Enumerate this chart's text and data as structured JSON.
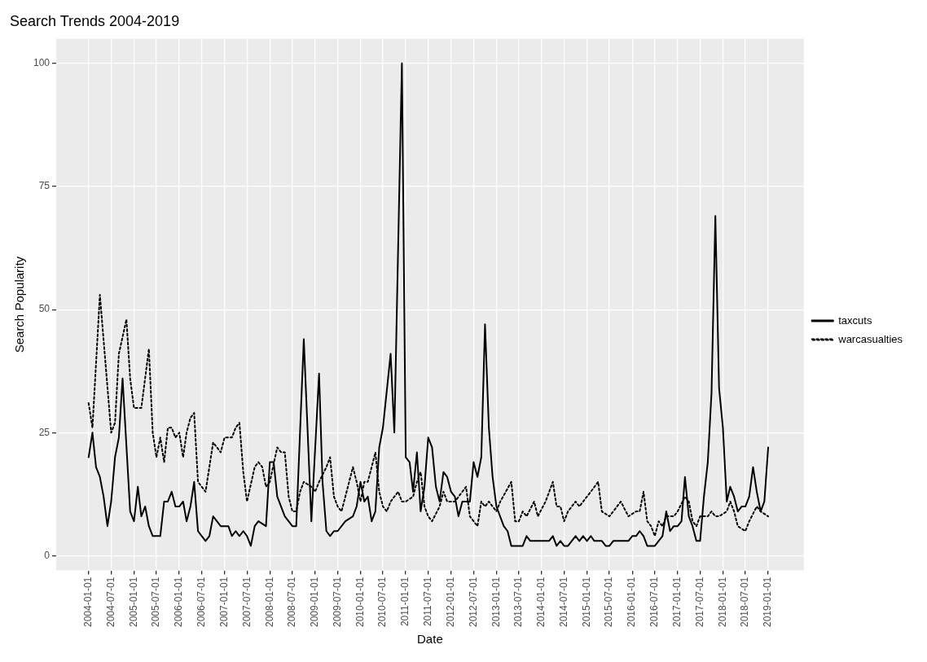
{
  "chart_data": {
    "type": "line",
    "title": "Search Trends 2004-2019",
    "xlabel": "Date",
    "ylabel": "Search Popularity",
    "xlim": [
      "2003-04-15",
      "2019-10-15"
    ],
    "ylim": [
      -3,
      105
    ],
    "yticks": [
      0,
      25,
      50,
      75,
      100
    ],
    "xticks": [
      "2004-01-01",
      "2004-07-01",
      "2005-01-01",
      "2005-07-01",
      "2006-01-01",
      "2006-07-01",
      "2007-01-01",
      "2007-07-01",
      "2008-01-01",
      "2008-07-01",
      "2009-01-01",
      "2009-07-01",
      "2010-01-01",
      "2010-07-01",
      "2011-01-01",
      "2011-07-01",
      "2012-01-01",
      "2012-07-01",
      "2013-01-01",
      "2013-07-01",
      "2014-01-01",
      "2014-07-01",
      "2015-01-01",
      "2015-07-01",
      "2016-01-01",
      "2016-07-01",
      "2017-01-01",
      "2017-07-01",
      "2018-01-01",
      "2018-07-01",
      "2019-01-01"
    ],
    "grid": true,
    "legend": "right",
    "series": [
      {
        "name": "taxcuts",
        "color": "#000000",
        "line_style": "solid",
        "x": [
          "2004-01",
          "2004-02",
          "2004-03",
          "2004-04",
          "2004-05",
          "2004-06",
          "2004-07",
          "2004-08",
          "2004-09",
          "2004-10",
          "2004-12",
          "2005-01",
          "2005-02",
          "2005-03",
          "2005-04",
          "2005-05",
          "2005-06",
          "2005-08",
          "2005-09",
          "2005-10",
          "2005-11",
          "2005-12",
          "2006-01",
          "2006-02",
          "2006-03",
          "2006-04",
          "2006-05",
          "2006-06",
          "2006-07",
          "2006-08",
          "2006-09",
          "2006-10",
          "2006-12",
          "2007-02",
          "2007-03",
          "2007-04",
          "2007-05",
          "2007-06",
          "2007-07",
          "2007-08",
          "2007-09",
          "2007-10",
          "2007-12",
          "2008-01",
          "2008-02",
          "2008-03",
          "2008-05",
          "2008-07",
          "2008-08",
          "2008-10",
          "2008-12",
          "2009-02",
          "2009-03",
          "2009-04",
          "2009-05",
          "2009-06",
          "2009-07",
          "2009-09",
          "2009-11",
          "2009-12",
          "2010-01",
          "2010-02",
          "2010-03",
          "2010-04",
          "2010-05",
          "2010-06",
          "2010-07",
          "2010-09",
          "2010-10",
          "2010-12",
          "2011-01",
          "2011-02",
          "2011-03",
          "2011-04",
          "2011-05",
          "2011-06",
          "2011-07",
          "2011-08",
          "2011-09",
          "2011-10",
          "2011-11",
          "2011-12",
          "2012-01",
          "2012-02",
          "2012-03",
          "2012-04",
          "2012-06",
          "2012-07",
          "2012-08",
          "2012-09",
          "2012-10",
          "2012-11",
          "2012-12",
          "2013-01",
          "2013-03",
          "2013-04",
          "2013-05",
          "2013-08",
          "2013-09",
          "2013-10",
          "2014-03",
          "2014-04",
          "2014-05",
          "2014-06",
          "2014-07",
          "2014-08",
          "2014-10",
          "2014-11",
          "2014-12",
          "2015-01",
          "2015-02",
          "2015-03",
          "2015-05",
          "2015-06",
          "2015-07",
          "2015-08",
          "2015-12",
          "2016-01",
          "2016-02",
          "2016-03",
          "2016-04",
          "2016-05",
          "2016-07",
          "2016-08",
          "2016-09",
          "2016-10",
          "2016-11",
          "2016-12",
          "2017-01",
          "2017-02",
          "2017-03",
          "2017-04",
          "2017-05",
          "2017-06",
          "2017-07",
          "2017-08",
          "2017-09",
          "2017-10",
          "2017-11",
          "2017-12",
          "2018-01",
          "2018-02",
          "2018-03",
          "2018-04",
          "2018-05",
          "2018-06",
          "2018-07",
          "2018-08",
          "2018-09",
          "2018-10",
          "2018-11",
          "2018-12",
          "2019-01"
        ],
        "values": [
          20,
          25,
          18,
          16,
          12,
          6,
          11,
          20,
          24,
          36,
          9,
          7,
          14,
          8,
          10,
          6,
          4,
          4,
          11,
          11,
          13,
          10,
          10,
          11,
          7,
          10,
          15,
          5,
          4,
          3,
          4,
          8,
          6,
          6,
          4,
          5,
          4,
          5,
          4,
          2,
          6,
          7,
          6,
          19,
          19,
          12,
          8,
          6,
          6,
          44,
          7,
          37,
          15,
          5,
          4,
          5,
          5,
          7,
          8,
          10,
          15,
          11,
          12,
          7,
          9,
          22,
          26,
          41,
          25,
          100,
          20,
          19,
          13,
          21,
          9,
          14,
          24,
          22,
          14,
          11,
          17,
          16,
          13,
          12,
          8,
          11,
          11,
          19,
          16,
          20,
          47,
          26,
          16,
          10,
          6,
          5,
          2,
          2,
          4,
          3,
          3,
          4,
          2,
          3,
          2,
          2,
          4,
          3,
          4,
          3,
          4,
          3,
          3,
          2,
          2,
          3,
          3,
          4,
          4,
          5,
          4,
          2,
          2,
          3,
          4,
          9,
          5,
          6,
          6,
          7,
          16,
          8,
          6,
          3,
          3,
          12,
          19,
          33,
          69,
          34,
          26,
          11,
          14,
          12,
          9,
          10,
          10,
          12,
          18,
          13,
          9,
          11,
          22
        ]
      },
      {
        "name": "warcasualties",
        "color": "#000000",
        "line_style": "dotted",
        "x": [
          "2004-01",
          "2004-02",
          "2004-04",
          "2004-07",
          "2004-08",
          "2004-09",
          "2004-11",
          "2004-12",
          "2005-01",
          "2005-03",
          "2005-05",
          "2005-06",
          "2005-07",
          "2005-08",
          "2005-09",
          "2005-10",
          "2005-11",
          "2005-12",
          "2006-01",
          "2006-02",
          "2006-03",
          "2006-04",
          "2006-05",
          "2006-06",
          "2006-07",
          "2006-08",
          "2006-10",
          "2006-11",
          "2006-12",
          "2007-01",
          "2007-03",
          "2007-04",
          "2007-05",
          "2007-06",
          "2007-07",
          "2007-09",
          "2007-10",
          "2007-11",
          "2007-12",
          "2008-01",
          "2008-03",
          "2008-04",
          "2008-05",
          "2008-06",
          "2008-07",
          "2008-08",
          "2008-09",
          "2008-10",
          "2008-12",
          "2009-01",
          "2009-02",
          "2009-04",
          "2009-05",
          "2009-06",
          "2009-07",
          "2009-08",
          "2009-09",
          "2009-11",
          "2009-12",
          "2010-01",
          "2010-02",
          "2010-03",
          "2010-04",
          "2010-05",
          "2010-06",
          "2010-07",
          "2010-08",
          "2010-09",
          "2010-11",
          "2010-12",
          "2011-01",
          "2011-03",
          "2011-04",
          "2011-05",
          "2011-06",
          "2011-07",
          "2011-08",
          "2011-10",
          "2011-11",
          "2011-12",
          "2012-02",
          "2012-04",
          "2012-05",
          "2012-06",
          "2012-08",
          "2012-09",
          "2012-10",
          "2012-11",
          "2013-01",
          "2013-02",
          "2013-05",
          "2013-06",
          "2013-07",
          "2013-08",
          "2013-09",
          "2013-11",
          "2013-12",
          "2014-02",
          "2014-04",
          "2014-05",
          "2014-06",
          "2014-07",
          "2014-08",
          "2014-10",
          "2014-11",
          "2014-12",
          "2015-01",
          "2015-02",
          "2015-04",
          "2015-05",
          "2015-07",
          "2015-08",
          "2015-10",
          "2015-12",
          "2016-02",
          "2016-03",
          "2016-04",
          "2016-05",
          "2016-06",
          "2016-07",
          "2016-08",
          "2016-09",
          "2016-10",
          "2016-12",
          "2017-01",
          "2017-03",
          "2017-04",
          "2017-05",
          "2017-06",
          "2017-07",
          "2017-09",
          "2017-10",
          "2017-11",
          "2017-12",
          "2018-02",
          "2018-03",
          "2018-04",
          "2018-05",
          "2018-07",
          "2018-08",
          "2018-10",
          "2018-11",
          "2019-01"
        ],
        "values": [
          31,
          26,
          53,
          25,
          27,
          41,
          48,
          36,
          30,
          30,
          42,
          25,
          20,
          24,
          19,
          26,
          26,
          24,
          25,
          20,
          25,
          28,
          29,
          15,
          14,
          13,
          23,
          22,
          21,
          24,
          24,
          26,
          27,
          17,
          11,
          18,
          19,
          18,
          14,
          15,
          22,
          21,
          21,
          12,
          9,
          9,
          13,
          15,
          14,
          13,
          15,
          18,
          20,
          12,
          10,
          9,
          12,
          18,
          15,
          11,
          15,
          15,
          18,
          21,
          13,
          10,
          9,
          11,
          13,
          11,
          11,
          12,
          15,
          17,
          10,
          8,
          7,
          10,
          13,
          11,
          11,
          13,
          14,
          8,
          6,
          11,
          10,
          11,
          9,
          11,
          15,
          7,
          7,
          9,
          8,
          11,
          8,
          11,
          15,
          10,
          10,
          7,
          9,
          11,
          10,
          11,
          12,
          13,
          15,
          9,
          8,
          9,
          11,
          8,
          9,
          9,
          13,
          7,
          6,
          4,
          7,
          6,
          8,
          8,
          9,
          12,
          11,
          7,
          6,
          8,
          8,
          9,
          8,
          8,
          9,
          11,
          9,
          6,
          5,
          7,
          10,
          9,
          8
        ]
      }
    ]
  }
}
